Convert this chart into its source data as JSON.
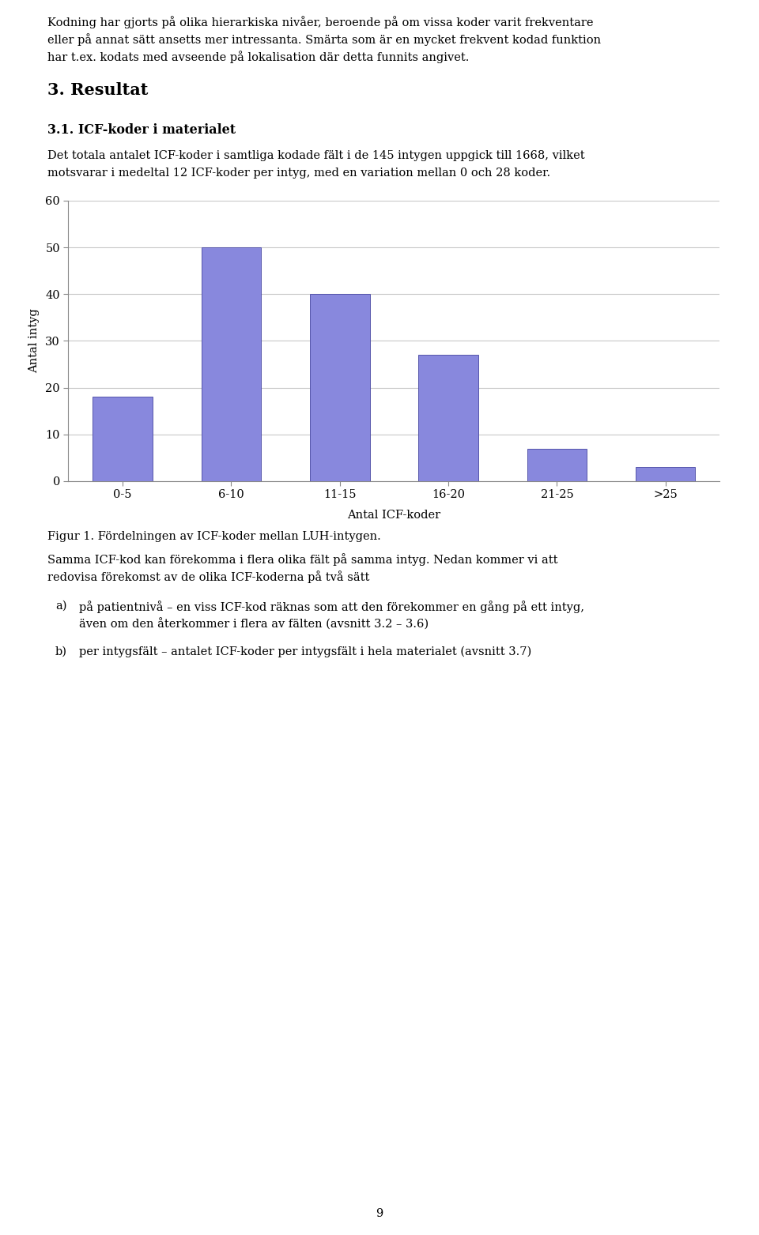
{
  "paragraph1_lines": [
    "Kodning har gjorts på olika hierarkiska nivåer, beroende på om vissa koder varit frekventare",
    "eller på annat sätt ansetts mer intressanta. Smärta som är en mycket frekvent kodad funktion",
    "har t.ex. kodats med avseende på lokalisation där detta funnits angivet."
  ],
  "section_title": "3. Resultat",
  "subsection_title": "3.1. ICF-koder i materialet",
  "paragraph2_lines": [
    "Det totala antalet ICF-koder i samtliga kodade fält i de 145 intygen uppgick till 1668, vilket",
    "motsvarar i medeltal 12 ICF-koder per intyg, med en variation mellan 0 och 28 koder."
  ],
  "categories": [
    "0-5",
    "6-10",
    "11-15",
    "16-20",
    "21-25",
    ">25"
  ],
  "values": [
    18,
    50,
    40,
    27,
    7,
    3
  ],
  "bar_color": "#8888dd",
  "bar_edge_color": "#5555aa",
  "xlabel": "Antal ICF-koder",
  "ylabel": "Antal intyg",
  "ylim": [
    0,
    60
  ],
  "yticks": [
    0,
    10,
    20,
    30,
    40,
    50,
    60
  ],
  "figure_caption": "Figur 1. Fördelningen av ICF-koder mellan LUH-intygen.",
  "paragraph3_lines": [
    "Samma ICF-kod kan förekomma i flera olika fält på samma intyg. Nedan kommer vi att",
    "redovisa förekomst av de olika ICF-koderna på två sätt"
  ],
  "bullet_a_lines": [
    "på patientnivå – en viss ICF-kod räknas som att den förekommer en gång på ett intyg,",
    "även om den återkommer i flera av fälten (avsnitt 3.2 – 3.6)"
  ],
  "bullet_b_lines": [
    "per intygsfält – antalet ICF-koder per intygsfält i hela materialet (avsnitt 3.7)"
  ],
  "page_number": "9",
  "bg_color": "#ffffff",
  "text_color": "#000000",
  "grid_color": "#c8c8c8",
  "font_size_body": 10.5,
  "font_size_section": 15,
  "font_size_subsection": 11.5
}
